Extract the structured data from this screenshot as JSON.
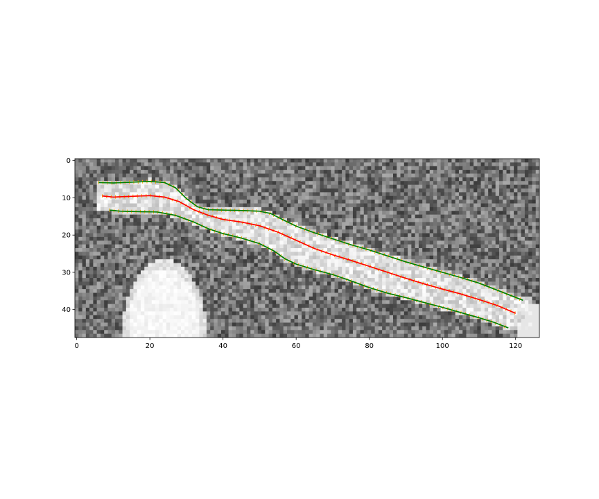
{
  "chart_data": {
    "type": "heatmap",
    "image": {
      "rows": 48,
      "cols": 127,
      "colormap": "gray",
      "background_level": 0.45,
      "noise_amplitude": 0.22,
      "bright_level": 1.0,
      "blob": {
        "cx": 24,
        "cy": 46,
        "rx": 10,
        "ry": 17
      },
      "band_halfwidth": 3.6
    },
    "xlim": [
      0,
      127
    ],
    "ylim": [
      48,
      0
    ],
    "xticks": [
      "0",
      "20",
      "40",
      "60",
      "80",
      "100",
      "120"
    ],
    "yticks": [
      "0",
      "10",
      "20",
      "30",
      "40"
    ],
    "xtick_values": [
      0,
      20,
      40,
      60,
      80,
      100,
      120
    ],
    "ytick_values": [
      0,
      10,
      20,
      30,
      40
    ],
    "title": "",
    "xlabel": "",
    "ylabel": "",
    "grid": false,
    "series": [
      {
        "role": "centerline",
        "color": "#ff0000",
        "x": [
          7,
          10,
          15,
          20,
          24,
          28,
          32,
          36,
          40,
          45,
          50,
          55,
          60,
          65,
          70,
          75,
          80,
          85,
          90,
          95,
          100,
          105,
          110,
          115,
          120
        ],
        "y": [
          9.5,
          9.8,
          9.6,
          9.4,
          9.8,
          11.0,
          13.2,
          14.7,
          15.8,
          16.5,
          17.5,
          19.2,
          21.4,
          23.6,
          25.3,
          26.8,
          28.4,
          30.0,
          31.6,
          33.1,
          34.5,
          35.8,
          37.3,
          38.9,
          41.0
        ]
      },
      {
        "role": "upper-edge",
        "color": "#008000",
        "x": [
          6,
          10,
          15,
          20,
          24,
          27,
          30,
          33,
          36,
          40,
          45,
          50,
          53,
          56,
          60,
          65,
          70,
          75,
          80,
          85,
          90,
          95,
          100,
          105,
          110,
          115,
          122
        ],
        "y": [
          5.9,
          6.0,
          5.8,
          5.6,
          5.9,
          7.3,
          10.2,
          12.4,
          13.2,
          13.3,
          13.4,
          13.6,
          14.2,
          15.7,
          17.6,
          19.4,
          21.0,
          22.6,
          24.0,
          25.6,
          27.2,
          28.6,
          30.0,
          31.4,
          32.9,
          34.8,
          37.5
        ]
      },
      {
        "role": "lower-edge",
        "color": "#008000",
        "x": [
          9,
          12,
          17,
          22,
          27,
          32,
          36,
          40,
          45,
          50,
          54,
          57,
          60,
          65,
          70,
          75,
          80,
          85,
          90,
          95,
          100,
          105,
          110,
          114,
          118
        ],
        "y": [
          13.3,
          13.6,
          13.7,
          13.8,
          14.7,
          16.5,
          18.3,
          19.6,
          20.8,
          22.3,
          24.3,
          26.4,
          27.8,
          29.3,
          30.6,
          32.3,
          34.1,
          35.6,
          36.8,
          38.1,
          39.4,
          40.8,
          42.2,
          43.4,
          44.9
        ]
      }
    ],
    "normal_tick_color": "#ffa500"
  }
}
